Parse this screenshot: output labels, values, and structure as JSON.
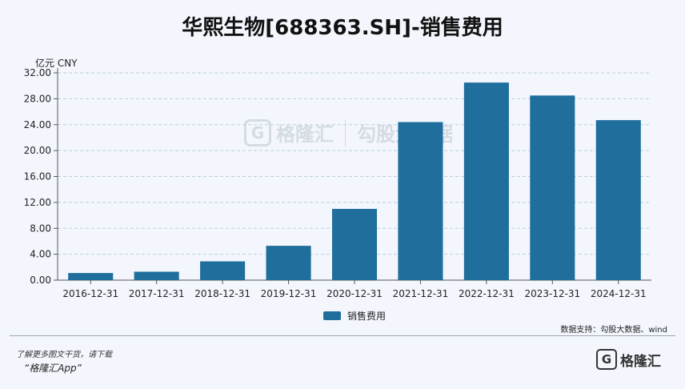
{
  "title": "华熙生物[688363.SH]-销售费用",
  "unit": "亿元  CNY",
  "source": "数据支持：勾股大数据、wind",
  "footer": {
    "line1": "了解更多图文干货，请下载",
    "line2": "“格隆汇App”",
    "logo_text": "格隆汇"
  },
  "watermark": {
    "brand": "格隆汇",
    "brand2": "勾股大数据"
  },
  "colors": {
    "bar": "#1f6e9c",
    "grid": "#b9cde0",
    "background": "#f3f7fd"
  },
  "chart_data": {
    "type": "bar",
    "categories": [
      "2016-12-31",
      "2017-12-31",
      "2018-12-31",
      "2019-12-31",
      "2020-12-31",
      "2021-12-31",
      "2022-12-31",
      "2023-12-31",
      "2024-12-31"
    ],
    "series": [
      {
        "name": "销售费用",
        "values": [
          1.1,
          1.3,
          2.9,
          5.3,
          11.0,
          24.4,
          30.5,
          28.5,
          24.7
        ]
      }
    ],
    "yticks": [
      "0.00",
      "4.00",
      "8.00",
      "12.00",
      "16.00",
      "20.00",
      "24.00",
      "28.00",
      "32.00"
    ],
    "ylim": [
      0,
      32
    ],
    "grid": true,
    "legend": "bottom-center"
  }
}
